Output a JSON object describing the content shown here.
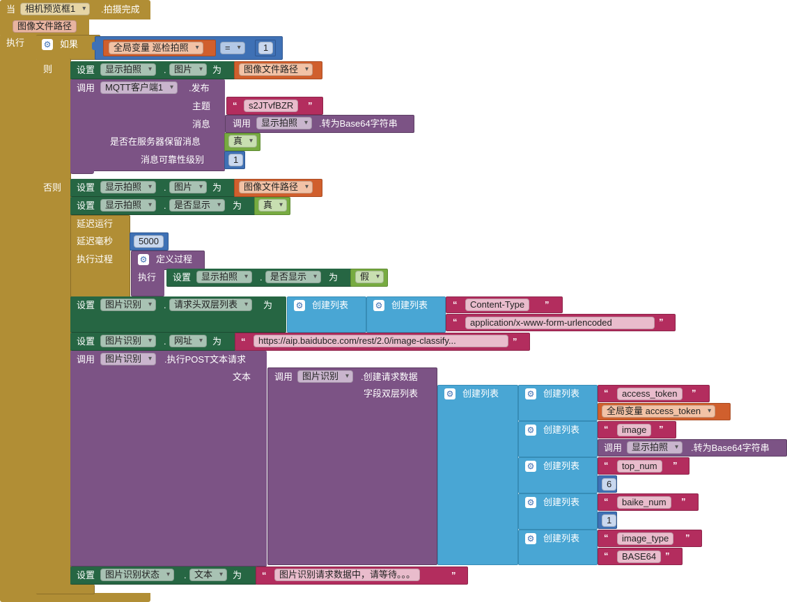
{
  "event": {
    "when": "当",
    "component": "相机预览框1",
    "event_name": ".拍摄完成",
    "param": "图像文件路径",
    "do": "执行"
  },
  "if_block": {
    "if": "如果",
    "then": "则",
    "else": "否则",
    "var": "全局变量 巡检拍照",
    "op": "=",
    "value": "1"
  },
  "then1": {
    "set": "设置",
    "component": "显示拍照",
    "property": "图片",
    "to": "为",
    "value": "图像文件路径"
  },
  "mqtt": {
    "call": "调用",
    "component": "MQTT客户端1",
    "method": ".发布",
    "topic_label": "主题",
    "topic_value": "s2JTvfBZR",
    "msg_label": "消息",
    "msg_call": "调用",
    "msg_component": "显示拍照",
    "msg_method": ".转为Base64字符串",
    "retain_label": "是否在服务器保留消息",
    "retain_value": "真",
    "qos_label": "消息可靠性级别",
    "qos_value": "1"
  },
  "else1": {
    "set": "设置",
    "component": "显示拍照",
    "property": "图片",
    "to": "为",
    "value": "图像文件路径"
  },
  "else2": {
    "set": "设置",
    "component": "显示拍照",
    "property": "是否显示",
    "to": "为",
    "value": "真"
  },
  "delay": {
    "title": "延迟运行",
    "ms_label": "延迟毫秒",
    "ms_value": "5000",
    "proc_label": "执行过程",
    "def_proc": "定义过程",
    "do": "执行",
    "inner_set": "设置",
    "inner_component": "显示拍照",
    "inner_property": "是否显示",
    "inner_to": "为",
    "inner_value": "假"
  },
  "headers": {
    "set": "设置",
    "component": "图片识别",
    "property": "请求头双层列表",
    "to": "为",
    "make_list": "创建列表",
    "item1": "Content-Type",
    "item2": "application/x-www-form-urlencoded"
  },
  "url": {
    "set": "设置",
    "component": "图片识别",
    "property": "网址",
    "to": "为",
    "value": "https://aip.baidubce.com/rest/2.0/image-classify..."
  },
  "post": {
    "call": "调用",
    "component": "图片识别",
    "method": ".执行POST文本请求",
    "text_label": "文本",
    "inner_call": "调用",
    "inner_component": "图片识别",
    "inner_method": ".创建请求数据",
    "fields_label": "字段双层列表",
    "make_list": "创建列表",
    "pairs": [
      {
        "key": "access_token",
        "value_type": "var",
        "value": "全局变量 access_token"
      },
      {
        "key": "image",
        "value_type": "call",
        "value_call": "调用",
        "value_component": "显示拍照",
        "value_method": ".转为Base64字符串"
      },
      {
        "key": "top_num",
        "value_type": "num",
        "value": "6"
      },
      {
        "key": "baike_num",
        "value_type": "num",
        "value": "1"
      },
      {
        "key": "image_type",
        "value_type": "str",
        "value": "BASE64"
      }
    ]
  },
  "status": {
    "set": "设置",
    "component": "图片识别状态",
    "property": "文本",
    "to": "为",
    "value": "图片识别请求数据中，请等待。。。"
  },
  "quote_open": "“",
  "quote_close": "”",
  "gear_icon": "gear-icon",
  "colors": {
    "event": "#b18e35",
    "set": "#266643",
    "call": "#7c5385",
    "variable": "#d05f2d",
    "string": "#b32d5e",
    "number": "#3f71b5",
    "logic": "#77ab41",
    "list": "#49a6d4"
  }
}
